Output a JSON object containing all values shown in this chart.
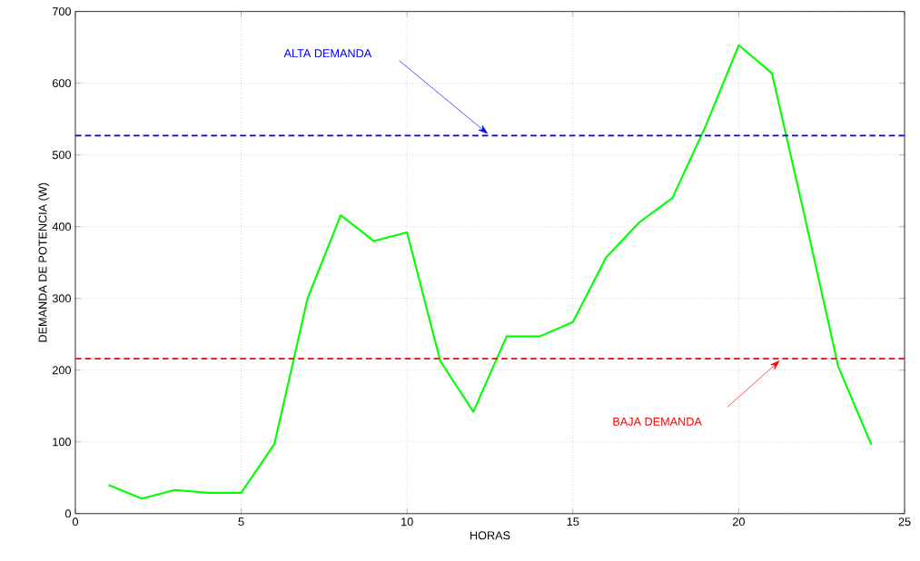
{
  "chart_data": {
    "type": "line",
    "xlabel": "HORAS",
    "ylabel": "DEMANDA DE POTENCIA (W)",
    "x": [
      1,
      2,
      3,
      4,
      5,
      6,
      7,
      8,
      9,
      10,
      11,
      12,
      13,
      14,
      15,
      16,
      17,
      18,
      19,
      20,
      21,
      22,
      23,
      24
    ],
    "series": [
      {
        "color": "#00ff00",
        "values": [
          40,
          21,
          33,
          29,
          29,
          97,
          300,
          416,
          380,
          392,
          213,
          142,
          247,
          247,
          267,
          357,
          406,
          440,
          540,
          653,
          614,
          412,
          205,
          96
        ]
      }
    ],
    "xlim": [
      0,
      25
    ],
    "ylim": [
      0,
      700
    ],
    "xticks": [
      0,
      5,
      10,
      15,
      20,
      25
    ],
    "yticks": [
      0,
      100,
      200,
      300,
      400,
      500,
      600,
      700
    ],
    "grid": true,
    "marker": "none",
    "line_style": "solid",
    "ref_lines": [
      {
        "axis": "y",
        "value": 527,
        "color": "#0000ff",
        "line_style": "dashed"
      },
      {
        "axis": "y",
        "value": 216,
        "color": "#ff0000",
        "line_style": "dashed"
      }
    ],
    "annotations": [
      "ALTA DEMANDA",
      "BAJA DEMANDA"
    ]
  }
}
